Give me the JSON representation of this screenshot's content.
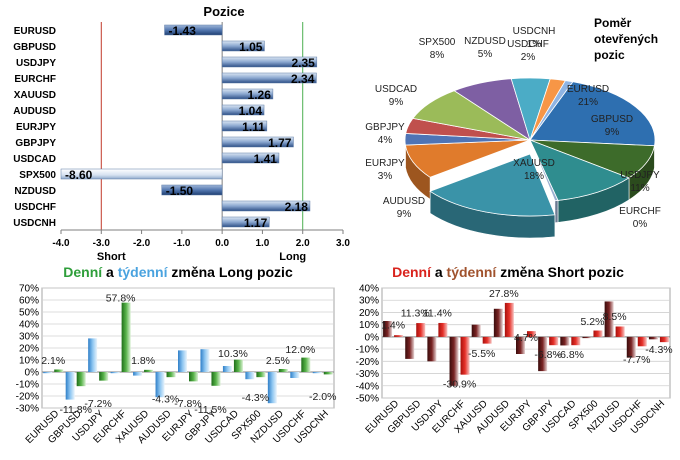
{
  "chart_data": [
    {
      "type": "bar",
      "orientation": "horizontal",
      "title": "Pozice",
      "categories": [
        "EURUSD",
        "GBPUSD",
        "USDJPY",
        "EURCHF",
        "XAUUSD",
        "AUDUSD",
        "EURJPY",
        "GBPJPY",
        "USDCAD",
        "SPX500",
        "NZDUSD",
        "USDCHF",
        "USDCNH"
      ],
      "values": [
        -1.43,
        1.05,
        2.35,
        2.34,
        1.26,
        1.04,
        1.11,
        1.77,
        1.41,
        -8.6,
        -1.5,
        2.18,
        1.17
      ],
      "value_labels": [
        "-1.43",
        "1.05",
        "2.35",
        "2.34",
        "1.26",
        "1.04",
        "1.11",
        "1.77",
        "1.41",
        "-8.60",
        "-1.50",
        "2.18",
        "1.17"
      ],
      "xlim": [
        -4.0,
        3.0
      ],
      "xticks": [
        "-4.0",
        "-3.0",
        "-2.0",
        "-1.0",
        "0.0",
        "1.0",
        "2.0",
        "3.0"
      ],
      "reference_lines": [
        {
          "x": -3,
          "color": "#c0392b"
        },
        {
          "x": 2,
          "color": "#4caf50"
        }
      ],
      "annotations": {
        "short": "Short",
        "long": "Long"
      }
    },
    {
      "type": "pie",
      "title": [
        "Poměr",
        "otevřených",
        "pozic"
      ],
      "slices": [
        {
          "label": "EURUSD",
          "value": 21,
          "text": "21%",
          "color": "#2e6fb0"
        },
        {
          "label": "GBPUSD",
          "value": 9,
          "text": "9%",
          "color": "#3d6b2a"
        },
        {
          "label": "USDJPY",
          "value": 11,
          "text": "11%",
          "color": "#2f8d8f"
        },
        {
          "label": "EURCHF",
          "value": 0,
          "text": "0%",
          "color": "#9ab0d0"
        },
        {
          "label": "XAUUSD",
          "value": 18,
          "text": "18%",
          "color": "#3a93a8"
        },
        {
          "label": "AUDUSD",
          "value": 9,
          "text": "9%",
          "color": "#e07b2c"
        },
        {
          "label": "EURJPY",
          "value": 3,
          "text": "3%",
          "color": "#4f74b5"
        },
        {
          "label": "GBPJPY",
          "value": 4,
          "text": "4%",
          "color": "#c0504d"
        },
        {
          "label": "USDCAD",
          "value": 9,
          "text": "9%",
          "color": "#9bbb59"
        },
        {
          "label": "SPX500",
          "value": 8,
          "text": "8%",
          "color": "#7e5fa3"
        },
        {
          "label": "NZDUSD",
          "value": 5,
          "text": "5%",
          "color": "#4bacc6"
        },
        {
          "label": "USDCHF",
          "value": 2,
          "text": "2%",
          "color": "#f79646"
        },
        {
          "label": "USDCNH",
          "value": 1,
          "text": "1%",
          "color": "#8fb4e3"
        }
      ]
    },
    {
      "type": "bar",
      "title_parts": [
        {
          "text": "Denní",
          "color": "#2e9e3a"
        },
        {
          "text": " a ",
          "color": "#000000"
        },
        {
          "text": "týdenní",
          "color": "#4aa3df"
        },
        {
          "text": " změna Long pozic",
          "color": "#000000"
        }
      ],
      "categories": [
        "EURUSD",
        "GBPUSD",
        "USDJPY",
        "EURCHF",
        "XAUUSD",
        "AUDUSD",
        "EURJPY",
        "GBPJPY",
        "USDCAD",
        "SPX500",
        "NZDUSD",
        "USDCHF",
        "USDCNH"
      ],
      "series": [
        {
          "name": "Denní",
          "color": "#3a8f2e",
          "values": [
            2.1,
            -11.8,
            -7.2,
            57.8,
            1.8,
            -4.3,
            -7.8,
            -11.5,
            10.3,
            -4.3,
            2.5,
            12.0,
            -2.0
          ]
        },
        {
          "name": "Týdenní",
          "color": "#4a9ee0",
          "values": [
            -1,
            -23,
            28,
            -1,
            -3,
            -21,
            18,
            19,
            5,
            -6,
            -26,
            -5,
            -1
          ]
        }
      ],
      "labels": [
        {
          "text": "2.1%",
          "cat": 0,
          "v": 10
        },
        {
          "text": "-11.8%",
          "cat": 1,
          "v": -31
        },
        {
          "text": "-7.2%",
          "cat": 2,
          "v": -26
        },
        {
          "text": "57.8%",
          "cat": 3,
          "v": 62
        },
        {
          "text": "1.8%",
          "cat": 4,
          "v": 10
        },
        {
          "text": "-4.3%",
          "cat": 5,
          "v": -22
        },
        {
          "text": "-7.8%",
          "cat": 6,
          "v": -26
        },
        {
          "text": "-11.5%",
          "cat": 7,
          "v": -31
        },
        {
          "text": "10.3%",
          "cat": 8,
          "v": 16
        },
        {
          "text": "-4.3%",
          "cat": 9,
          "v": -21
        },
        {
          "text": "2.5%",
          "cat": 10,
          "v": 10
        },
        {
          "text": "12.0%",
          "cat": 11,
          "v": 19
        },
        {
          "text": "-2.0%",
          "cat": 12,
          "v": -20
        }
      ],
      "ylim": [
        -30,
        70
      ],
      "yticks": [
        "70%",
        "60%",
        "50%",
        "40%",
        "30%",
        "20%",
        "10%",
        "0%",
        "-10%",
        "-20%",
        "-30%"
      ]
    },
    {
      "type": "bar",
      "title_parts": [
        {
          "text": "Denní",
          "color": "#d9231d"
        },
        {
          "text": " a ",
          "color": "#000000"
        },
        {
          "text": "týdenní",
          "color": "#a0522d"
        },
        {
          "text": " změna Short pozic",
          "color": "#000000"
        }
      ],
      "categories": [
        "EURUSD",
        "GBPUSD",
        "USDJPY",
        "EURCHF",
        "XAUUSD",
        "AUDUSD",
        "EURJPY",
        "GBPJPY",
        "USDCAD",
        "SPX500",
        "NZDUSD",
        "USDCHF",
        "USDCNH"
      ],
      "series": [
        {
          "name": "Denní",
          "color": "#d9231d",
          "values": [
            1.4,
            11.3,
            11.4,
            -30.9,
            -5.5,
            27.8,
            4.7,
            -6.8,
            -6.8,
            5.2,
            8.5,
            -7.7,
            -4.3
          ]
        },
        {
          "name": "Týdenní",
          "color": "#6b1a1a",
          "values": [
            13,
            -18,
            -20,
            -40,
            10,
            23,
            -14,
            -28,
            -7,
            -1,
            29,
            -17,
            -2
          ]
        }
      ],
      "labels": [
        {
          "text": "1.4%",
          "cat": 0,
          "v": 10
        },
        {
          "text": "11.3%",
          "cat": 1,
          "v": 20
        },
        {
          "text": "11.4%",
          "cat": 2,
          "v": 20
        },
        {
          "text": "-30.9%",
          "cat": 3,
          "v": -38
        },
        {
          "text": "-5.5%",
          "cat": 4,
          "v": -13
        },
        {
          "text": "27.8%",
          "cat": 5,
          "v": 36
        },
        {
          "text": "4.7%",
          "cat": 6,
          "v": 0
        },
        {
          "text": "-6.8%",
          "cat": 7,
          "v": -14
        },
        {
          "text": "-6.8%",
          "cat": 8,
          "v": -14
        },
        {
          "text": "5.2%",
          "cat": 9,
          "v": 13
        },
        {
          "text": "8.5%",
          "cat": 10,
          "v": 17
        },
        {
          "text": "-7.7%",
          "cat": 11,
          "v": -18
        },
        {
          "text": "-4.3%",
          "cat": 12,
          "v": -10
        }
      ],
      "ylim": [
        -50,
        40
      ],
      "yticks": [
        "40%",
        "30%",
        "20%",
        "10%",
        "0%",
        "-10%",
        "-20%",
        "-30%",
        "-40%",
        "-50%"
      ]
    }
  ]
}
